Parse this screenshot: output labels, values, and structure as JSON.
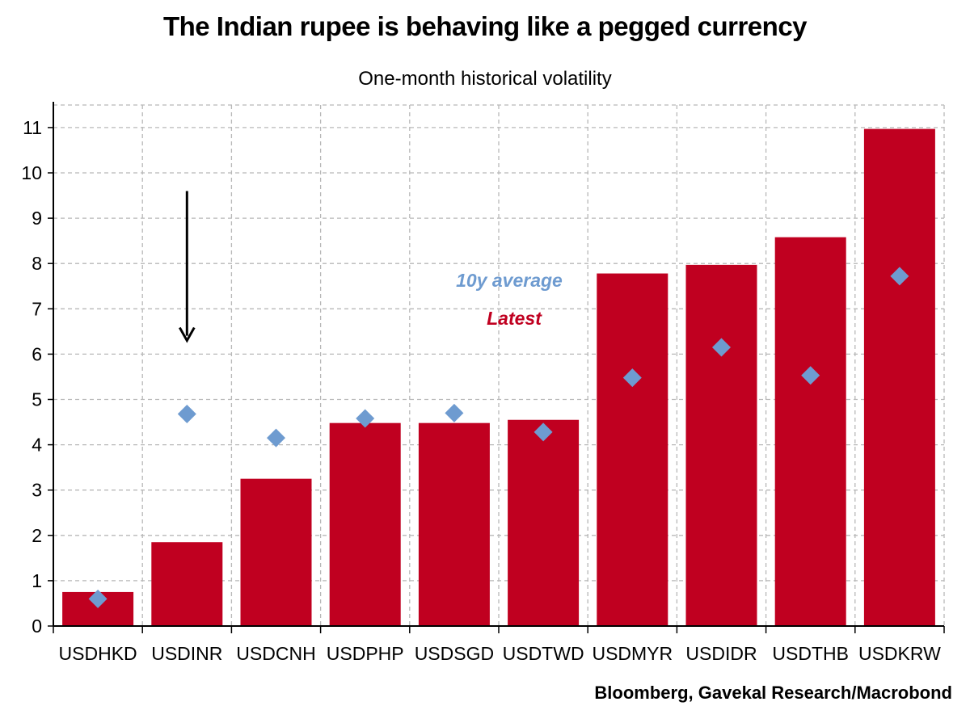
{
  "chart_data": {
    "type": "bar",
    "title": "The Indian rupee is behaving like a pegged currency",
    "subtitle": "One-month historical volatility",
    "source": "Bloomberg, Gavekal Research/Macrobond",
    "categories": [
      "USDHKD",
      "USDINR",
      "USDCNH",
      "USDPHP",
      "USDSGD",
      "USDTWD",
      "USDMYR",
      "USDIDR",
      "USDTHB",
      "USDKRW"
    ],
    "series": [
      {
        "name": "Latest",
        "kind": "bar",
        "color": "#c00020",
        "values": [
          0.75,
          1.85,
          3.25,
          4.48,
          4.48,
          4.55,
          7.78,
          7.97,
          8.58,
          10.97
        ]
      },
      {
        "name": "10y average",
        "kind": "marker",
        "color": "#6e9bd0",
        "values": [
          0.6,
          4.68,
          4.15,
          4.58,
          4.7,
          4.28,
          5.48,
          6.15,
          5.53,
          7.72
        ]
      }
    ],
    "yticks": [
      "0",
      "1",
      "2",
      "3",
      "4",
      "5",
      "6",
      "7",
      "8",
      "9",
      "10",
      "11"
    ],
    "ylim": [
      0,
      11
    ],
    "xlabel": "",
    "ylabel": "",
    "grid": true,
    "legend_position": "center",
    "annotation": {
      "type": "down-arrow",
      "category": "USDINR",
      "y_from": 9.6,
      "y_to": 6.3
    }
  }
}
